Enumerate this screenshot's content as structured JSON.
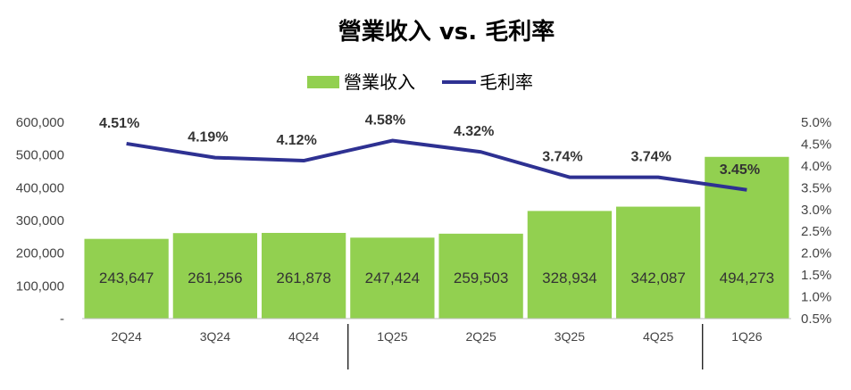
{
  "chart_data": {
    "type": "bar",
    "title": "營業收入 vs. 毛利率",
    "categories": [
      "2Q24",
      "3Q24",
      "4Q24",
      "1Q25",
      "2Q25",
      "3Q25",
      "4Q25",
      "1Q26"
    ],
    "series": [
      {
        "name": "營業收入",
        "type": "bar",
        "axis": "left",
        "values": [
          243647,
          261256,
          261878,
          247424,
          259503,
          328934,
          342087,
          494273
        ],
        "labels": [
          "243,647",
          "261,256",
          "261,878",
          "247,424",
          "259,503",
          "328,934",
          "342,087",
          "494,273"
        ],
        "color": "#92d050"
      },
      {
        "name": "毛利率",
        "type": "line",
        "axis": "right",
        "values": [
          4.51,
          4.19,
          4.12,
          4.58,
          4.32,
          3.74,
          3.74,
          3.45
        ],
        "labels": [
          "4.51%",
          "4.19%",
          "4.12%",
          "4.58%",
          "4.32%",
          "3.74%",
          "3.74%",
          "3.45%"
        ],
        "color": "#2e3192"
      }
    ],
    "y_left": {
      "min": 0,
      "max": 600000,
      "ticks": [
        0,
        100000,
        200000,
        300000,
        400000,
        500000,
        600000
      ],
      "tick_labels": [
        "-",
        "100,000",
        "200,000",
        "300,000",
        "400,000",
        "500,000",
        "600,000"
      ]
    },
    "y_right": {
      "min": 0.5,
      "max": 5.0,
      "ticks": [
        0.5,
        1.0,
        1.5,
        2.0,
        2.5,
        3.0,
        3.5,
        4.0,
        4.5,
        5.0
      ],
      "tick_labels": [
        "0.5%",
        "1.0%",
        "1.5%",
        "2.0%",
        "2.5%",
        "3.0%",
        "3.5%",
        "4.0%",
        "4.5%",
        "5.0%"
      ]
    },
    "year_separators_after": [
      "4Q24",
      "4Q25"
    ],
    "legend": {
      "position": "top-center"
    },
    "grid": false
  }
}
